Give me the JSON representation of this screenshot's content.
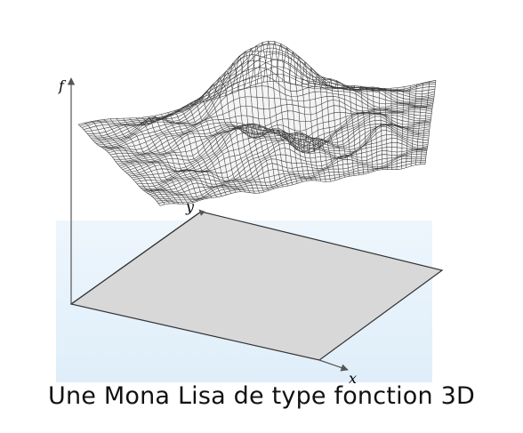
{
  "figure": {
    "axis_labels": {
      "f": "f",
      "x": "x",
      "y": "y"
    },
    "colors": {
      "background_band": "#e6f2fb",
      "plane_fill": "#d8d8d8",
      "plane_stroke": "#333333",
      "mesh_stroke": "#3a3a3a",
      "axis": "#555555"
    },
    "surface_name": "wireframe-surface"
  },
  "caption": {
    "text": "Une Mona Lisa de type fonction 3D"
  }
}
